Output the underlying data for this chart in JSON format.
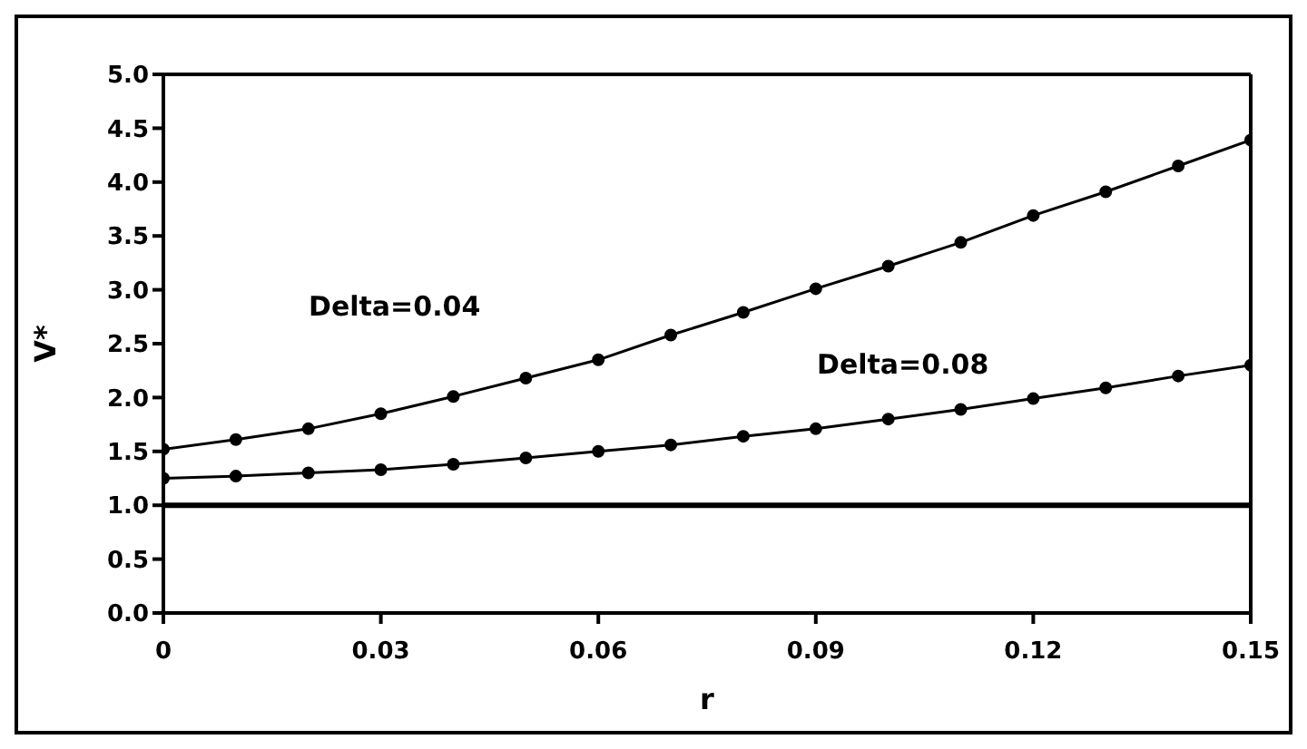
{
  "chart_data": {
    "type": "line",
    "xlabel": "r",
    "ylabel": "V*",
    "x": [
      0,
      0.01,
      0.02,
      0.03,
      0.04,
      0.05,
      0.06,
      0.07,
      0.08,
      0.09,
      0.1,
      0.11,
      0.12,
      0.13,
      0.14,
      0.15
    ],
    "series": [
      {
        "color": "#000000",
        "values": [
          1.52,
          1.61,
          1.71,
          1.85,
          2.01,
          2.18,
          2.35,
          2.58,
          2.79,
          3.01,
          3.22,
          3.44,
          3.69,
          3.91,
          4.15,
          4.39
        ]
      },
      {
        "color": "#000000",
        "values": [
          1.25,
          1.27,
          1.3,
          1.33,
          1.38,
          1.44,
          1.5,
          1.56,
          1.64,
          1.71,
          1.8,
          1.89,
          1.99,
          2.09,
          2.2,
          2.3
        ]
      }
    ],
    "xlim": [
      0,
      0.15
    ],
    "xticks": [
      0,
      0.03,
      0.06,
      0.09,
      0.12,
      0.15
    ],
    "ylim": [
      0,
      5
    ],
    "yticks": [
      {
        "value": 0,
        "label": "0.0"
      },
      0.5,
      {
        "value": 1,
        "label": "1.0"
      },
      1.5,
      {
        "value": 2,
        "label": "2.0"
      },
      2.5,
      {
        "value": 3,
        "label": "3.0"
      },
      3.5,
      {
        "value": 4,
        "label": "4.0"
      },
      4.5,
      {
        "value": 5,
        "label": "5.0"
      }
    ],
    "ref_lines": [
      {
        "axis": "y",
        "value": 1,
        "label": null,
        "color": "#000000"
      }
    ],
    "annotations": [
      "Delta=0.04",
      "Delta=0.08"
    ],
    "grid": false,
    "legend": false,
    "marker": "circle",
    "line_style": "solid"
  }
}
